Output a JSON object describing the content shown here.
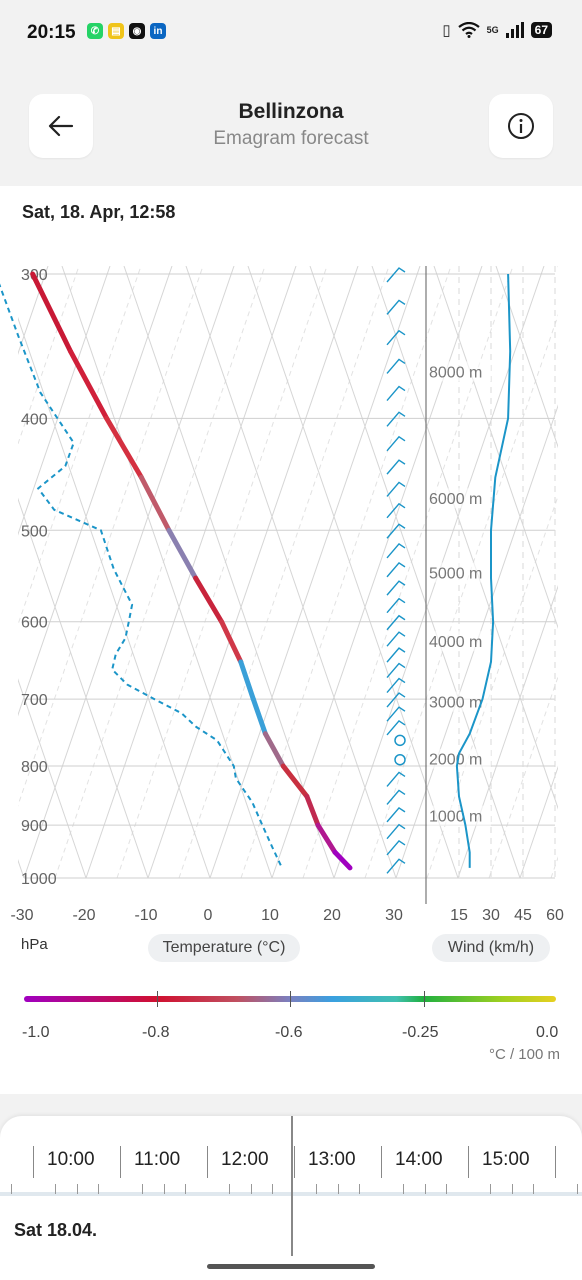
{
  "status_bar": {
    "time": "20:15",
    "app_icons": [
      {
        "name": "whatsapp-icon",
        "color": "#25d366",
        "glyph": "✆"
      },
      {
        "name": "notes-icon",
        "color": "#f0c419",
        "glyph": "▤"
      },
      {
        "name": "message-icon",
        "color": "#111111",
        "glyph": "◉"
      },
      {
        "name": "linkedin-icon",
        "color": "#0a66c2",
        "glyph": "in"
      }
    ],
    "network": "5G",
    "battery": "67"
  },
  "header": {
    "title": "Bellinzona",
    "subtitle": "Emagram forecast",
    "back_icon": "arrow-left-icon",
    "info_icon": "info-icon"
  },
  "date_label": "Sat, 18. Apr, 12:58",
  "chart_data": {
    "type": "line",
    "pressure_ticks": [
      "300",
      "400",
      "500",
      "600",
      "700",
      "800",
      "900",
      "1000"
    ],
    "pressure_values": [
      300,
      400,
      500,
      600,
      700,
      800,
      900,
      1000
    ],
    "temp_ticks": [
      "-30",
      "-20",
      "-10",
      "0",
      "10",
      "20",
      "30"
    ],
    "wind_ticks": [
      "15",
      "30",
      "45",
      "60"
    ],
    "altitude_labels": [
      "8000 m",
      "6000 m",
      "5000 m",
      "4000 m",
      "3000 m",
      "2000 m",
      "1000 m"
    ],
    "altitude_label_pressure": [
      365,
      470,
      545,
      625,
      705,
      790,
      885
    ],
    "x_label": "Temperature (°C)",
    "wind_label": "Wind (km/h)",
    "y_unit": "hPa",
    "series": [
      {
        "role": "temperature",
        "p": [
          300,
          350,
          400,
          450,
          500,
          550,
          600,
          650,
          700,
          750,
          800,
          850,
          900,
          950,
          980
        ],
        "t": [
          -12,
          -8,
          -4,
          0,
          3,
          6,
          9,
          11,
          12,
          13,
          15,
          18,
          19,
          21,
          23
        ]
      },
      {
        "role": "dewpoint",
        "p": [
          300,
          340,
          380,
          420,
          440,
          460,
          480,
          500,
          540,
          560,
          580,
          600,
          620,
          640,
          660,
          680,
          700,
          720,
          740,
          760,
          800,
          820,
          860,
          900,
          940,
          980
        ],
        "t": [
          -18,
          -16,
          -14,
          -10,
          -12,
          -17,
          -15,
          -8,
          -7,
          -6,
          -5,
          -6,
          -7,
          -9,
          -10,
          -8,
          -4,
          0,
          2,
          5,
          7,
          7,
          9,
          10,
          11,
          12
        ]
      },
      {
        "role": "wind_speed",
        "p": [
          300,
          350,
          400,
          450,
          500,
          550,
          600,
          650,
          700,
          750,
          780,
          800,
          850,
          900,
          950,
          980
        ],
        "v": [
          38,
          39,
          38,
          32,
          30,
          30,
          31,
          30,
          26,
          20,
          15,
          14,
          15,
          18,
          20,
          20
        ]
      }
    ],
    "wind_barbs_pressure": [
      300,
      320,
      340,
      360,
      380,
      400,
      420,
      440,
      460,
      480,
      500,
      520,
      540,
      560,
      580,
      600,
      620,
      640,
      660,
      680,
      700,
      720,
      740,
      760,
      790,
      820,
      850,
      880,
      910,
      940,
      975
    ],
    "xlim": [
      -30,
      30
    ],
    "wind_xlim": [
      0,
      60
    ],
    "ylim": [
      300,
      1000
    ]
  },
  "legend": {
    "labels": [
      "-1.0",
      "-0.8",
      "-0.6",
      "-0.25",
      "0.0"
    ],
    "unit": "°C / 100 m"
  },
  "timeline": {
    "hours": [
      "10:00",
      "11:00",
      "12:00",
      "13:00",
      "14:00",
      "15:00"
    ],
    "day_label": "Sat 18.04."
  }
}
